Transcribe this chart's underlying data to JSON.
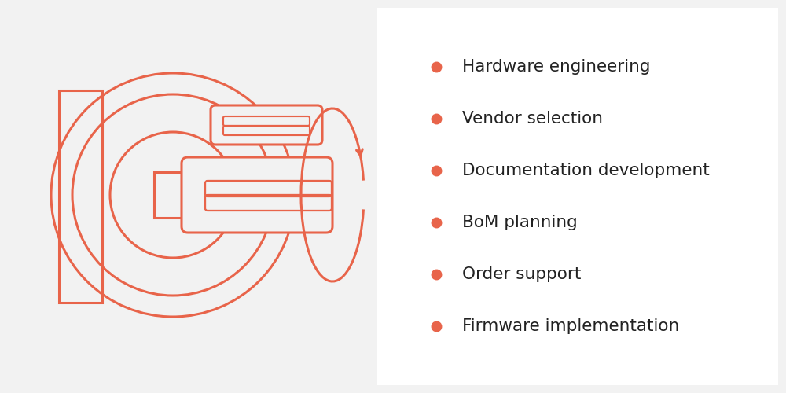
{
  "background_color": "#f2f2f2",
  "right_bg_color": "#ffffff",
  "stroke_color": "#e8644a",
  "stroke_width": 2.2,
  "bullet_color": "#e8644a",
  "text_color": "#222222",
  "items": [
    "Hardware engineering",
    "Vendor selection",
    "Documentation development",
    "BoM planning",
    "Order support",
    "Firmware implementation"
  ],
  "text_fontsize": 15.5,
  "bullet_size": 9
}
